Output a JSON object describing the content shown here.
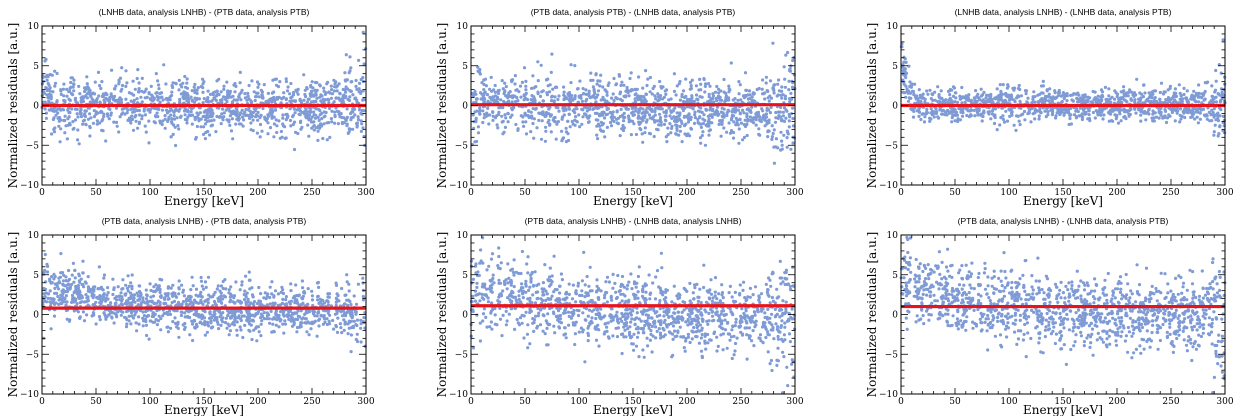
{
  "figure": {
    "colors": {
      "points": "#7f9bd6",
      "fit_line": "#e8141b",
      "axes": "#000000"
    }
  },
  "chart_data": [
    {
      "type": "scatter",
      "title": "(LNHB data, analysis LNHB) - (PTB data, analysis PTB)",
      "xlabel": "Energy [keV]",
      "ylabel": "Normalized residuals [a.u.]",
      "xlim": [
        0,
        300
      ],
      "ylim": [
        -10,
        10
      ],
      "xticks": [
        0,
        50,
        100,
        150,
        200,
        250,
        300
      ],
      "yticks": [
        -10,
        -5,
        0,
        5,
        10
      ],
      "grid": false,
      "fit_line": {
        "y": 0.0
      },
      "residual_trend": {
        "spread": 1.7,
        "mean_start": 1.8,
        "mean_decay_keV": 5,
        "mean_end": 0.0,
        "spread_edge": 0.8
      }
    },
    {
      "type": "scatter",
      "title": "(PTB data, analysis PTB) - (LNHB data, analysis PTB)",
      "xlabel": "Energy [keV]",
      "ylabel": "Normalized residuals [a.u.]",
      "xlim": [
        0,
        300
      ],
      "ylim": [
        -10,
        10
      ],
      "xticks": [
        0,
        50,
        100,
        150,
        200,
        250,
        300
      ],
      "yticks": [
        -10,
        -5,
        0,
        5,
        10
      ],
      "grid": false,
      "fit_line": {
        "y": 0.1
      },
      "residual_trend": {
        "spread": 1.8,
        "mean_start": 0.6,
        "mean_decay_keV": 60,
        "mean_end": -0.4,
        "spread_edge": 1.2
      }
    },
    {
      "type": "scatter",
      "title": "(LNHB data, analysis LNHB) - (LNHB data, analysis PTB)",
      "xlabel": "Energy [keV]",
      "ylabel": "Normalized residuals [a.u.]",
      "xlim": [
        0,
        300
      ],
      "ylim": [
        -10,
        10
      ],
      "xticks": [
        0,
        50,
        100,
        150,
        200,
        250,
        300
      ],
      "yticks": [
        -10,
        -5,
        0,
        5,
        10
      ],
      "grid": false,
      "fit_line": {
        "y": 0.0
      },
      "residual_trend": {
        "spread": 1.0,
        "mean_start": 7.0,
        "mean_decay_keV": 5,
        "mean_end": 0.1,
        "spread_edge": 1.6
      }
    },
    {
      "type": "scatter",
      "title": "(PTB data, analysis LNHB) - (PTB data, analysis PTB)",
      "xlabel": "Energy [keV]",
      "ylabel": "Normalized residuals [a.u.]",
      "xlim": [
        0,
        300
      ],
      "ylim": [
        -10,
        10
      ],
      "xticks": [
        0,
        50,
        100,
        150,
        200,
        250,
        300
      ],
      "yticks": [
        -10,
        -5,
        0,
        5,
        10
      ],
      "grid": false,
      "fit_line": {
        "y": 0.8
      },
      "residual_trend": {
        "spread": 1.5,
        "mean_start": 3.2,
        "mean_decay_keV": 80,
        "mean_end": 0.3,
        "spread_edge": 0.6
      }
    },
    {
      "type": "scatter",
      "title": "(PTB data, analysis LNHB) - (LNHB data, analysis LNHB)",
      "xlabel": "Energy [keV]",
      "ylabel": "Normalized residuals [a.u.]",
      "xlim": [
        0,
        300
      ],
      "ylim": [
        -10,
        10
      ],
      "xticks": [
        0,
        50,
        100,
        150,
        200,
        250,
        300
      ],
      "yticks": [
        -10,
        -5,
        0,
        5,
        10
      ],
      "grid": false,
      "fit_line": {
        "y": 1.1
      },
      "residual_trend": {
        "spread": 2.2,
        "mean_start": 3.0,
        "mean_decay_keV": 110,
        "mean_end": -0.5,
        "spread_edge": 1.0
      }
    },
    {
      "type": "scatter",
      "title": "(PTB data, analysis LNHB) - (LNHB data, analysis PTB)",
      "xlabel": "Energy [keV]",
      "ylabel": "Normalized residuals [a.u.]",
      "xlim": [
        0,
        300
      ],
      "ylim": [
        -10,
        10
      ],
      "xticks": [
        0,
        50,
        100,
        150,
        200,
        250,
        300
      ],
      "yticks": [
        -10,
        -5,
        0,
        5,
        10
      ],
      "grid": false,
      "fit_line": {
        "y": 1.0
      },
      "residual_trend": {
        "spread": 2.2,
        "mean_start": 4.0,
        "mean_decay_keV": 90,
        "mean_end": -0.4,
        "spread_edge": 1.2
      }
    }
  ]
}
